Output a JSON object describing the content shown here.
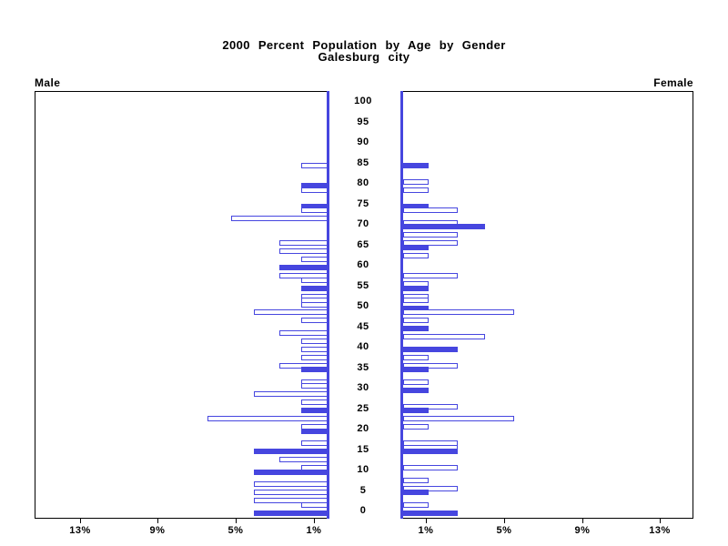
{
  "title": {
    "line1": "2000 Percent Population by Age by Gender",
    "line2": "Galesburg city"
  },
  "side_labels": {
    "left": "Male",
    "right": "Female"
  },
  "axis": {
    "age_labels": [
      "0",
      "5",
      "10",
      "15",
      "20",
      "25",
      "30",
      "35",
      "40",
      "45",
      "50",
      "55",
      "60",
      "65",
      "70",
      "75",
      "80",
      "85",
      "90",
      "95",
      "100"
    ],
    "male_pct_labels": [
      "13%",
      "9%",
      "5%",
      "1%"
    ],
    "female_pct_labels": [
      "1%",
      "5%",
      "9%",
      "13%"
    ]
  },
  "colors": {
    "bar_blue": "#4646df",
    "frame": "#000000",
    "text": "#000000",
    "background": "#ffffff"
  },
  "chart_data": {
    "type": "bar",
    "variant": "population-pyramid",
    "title": "2000 Percent Population by Age by Gender",
    "subtitle": "Galesburg city",
    "unit": "percent of population",
    "age_axis": {
      "min": 0,
      "max": 100,
      "tick_step": 5
    },
    "pct_axis": {
      "min": 0,
      "max": 15,
      "ticks": [
        1,
        5,
        9,
        13
      ]
    },
    "bar_style_note": "solid = filled blue bar, outline = white bar with blue border",
    "series": [
      {
        "name": "Male",
        "direction": "left",
        "bars": [
          {
            "age": 85,
            "pct": 1.4,
            "fill": "outline"
          },
          {
            "age": 80,
            "pct": 1.4,
            "fill": "solid"
          },
          {
            "age": 79,
            "pct": 1.4,
            "fill": "outline"
          },
          {
            "age": 75,
            "pct": 1.4,
            "fill": "solid"
          },
          {
            "age": 74,
            "pct": 1.4,
            "fill": "outline"
          },
          {
            "age": 72,
            "pct": 5.0,
            "fill": "outline"
          },
          {
            "age": 66,
            "pct": 2.5,
            "fill": "outline"
          },
          {
            "age": 64,
            "pct": 2.5,
            "fill": "outline"
          },
          {
            "age": 62,
            "pct": 1.4,
            "fill": "outline"
          },
          {
            "age": 60,
            "pct": 2.5,
            "fill": "solid"
          },
          {
            "age": 58,
            "pct": 2.5,
            "fill": "outline"
          },
          {
            "age": 57,
            "pct": 1.4,
            "fill": "outline"
          },
          {
            "age": 55,
            "pct": 1.4,
            "fill": "solid"
          },
          {
            "age": 53,
            "pct": 1.4,
            "fill": "outline"
          },
          {
            "age": 52,
            "pct": 1.4,
            "fill": "outline"
          },
          {
            "age": 51,
            "pct": 1.4,
            "fill": "outline"
          },
          {
            "age": 49,
            "pct": 3.8,
            "fill": "outline"
          },
          {
            "age": 47,
            "pct": 1.4,
            "fill": "outline"
          },
          {
            "age": 44,
            "pct": 2.5,
            "fill": "outline"
          },
          {
            "age": 42,
            "pct": 1.4,
            "fill": "outline"
          },
          {
            "age": 40,
            "pct": 1.4,
            "fill": "outline"
          },
          {
            "age": 38,
            "pct": 1.4,
            "fill": "outline"
          },
          {
            "age": 36,
            "pct": 2.5,
            "fill": "outline"
          },
          {
            "age": 35,
            "pct": 1.4,
            "fill": "solid"
          },
          {
            "age": 32,
            "pct": 1.4,
            "fill": "outline"
          },
          {
            "age": 31,
            "pct": 1.4,
            "fill": "outline"
          },
          {
            "age": 29,
            "pct": 3.8,
            "fill": "outline"
          },
          {
            "age": 27,
            "pct": 1.4,
            "fill": "outline"
          },
          {
            "age": 25,
            "pct": 1.4,
            "fill": "solid"
          },
          {
            "age": 23,
            "pct": 6.2,
            "fill": "outline"
          },
          {
            "age": 21,
            "pct": 1.4,
            "fill": "outline"
          },
          {
            "age": 20,
            "pct": 1.4,
            "fill": "solid"
          },
          {
            "age": 17,
            "pct": 1.4,
            "fill": "outline"
          },
          {
            "age": 15,
            "pct": 3.8,
            "fill": "solid"
          },
          {
            "age": 13,
            "pct": 2.5,
            "fill": "outline"
          },
          {
            "age": 11,
            "pct": 1.4,
            "fill": "outline"
          },
          {
            "age": 10,
            "pct": 3.8,
            "fill": "solid"
          },
          {
            "age": 7,
            "pct": 3.8,
            "fill": "outline"
          },
          {
            "age": 5,
            "pct": 3.8,
            "fill": "outline"
          },
          {
            "age": 3,
            "pct": 3.8,
            "fill": "outline"
          },
          {
            "age": 2,
            "pct": 1.4,
            "fill": "outline"
          },
          {
            "age": 0,
            "pct": 3.8,
            "fill": "solid"
          }
        ]
      },
      {
        "name": "Female",
        "direction": "right",
        "bars": [
          {
            "age": 85,
            "pct": 1.3,
            "fill": "solid"
          },
          {
            "age": 81,
            "pct": 1.3,
            "fill": "outline"
          },
          {
            "age": 79,
            "pct": 1.3,
            "fill": "outline"
          },
          {
            "age": 75,
            "pct": 1.3,
            "fill": "solid"
          },
          {
            "age": 74,
            "pct": 2.8,
            "fill": "outline"
          },
          {
            "age": 71,
            "pct": 2.8,
            "fill": "outline"
          },
          {
            "age": 70,
            "pct": 4.2,
            "fill": "solid"
          },
          {
            "age": 68,
            "pct": 2.8,
            "fill": "outline"
          },
          {
            "age": 66,
            "pct": 2.8,
            "fill": "outline"
          },
          {
            "age": 65,
            "pct": 1.3,
            "fill": "solid"
          },
          {
            "age": 63,
            "pct": 1.3,
            "fill": "outline"
          },
          {
            "age": 58,
            "pct": 2.8,
            "fill": "outline"
          },
          {
            "age": 56,
            "pct": 1.3,
            "fill": "outline"
          },
          {
            "age": 55,
            "pct": 1.3,
            "fill": "solid"
          },
          {
            "age": 53,
            "pct": 1.3,
            "fill": "outline"
          },
          {
            "age": 52,
            "pct": 1.3,
            "fill": "outline"
          },
          {
            "age": 50,
            "pct": 1.3,
            "fill": "solid"
          },
          {
            "age": 49,
            "pct": 5.7,
            "fill": "outline"
          },
          {
            "age": 47,
            "pct": 1.3,
            "fill": "outline"
          },
          {
            "age": 45,
            "pct": 1.3,
            "fill": "solid"
          },
          {
            "age": 43,
            "pct": 4.2,
            "fill": "outline"
          },
          {
            "age": 40,
            "pct": 2.8,
            "fill": "solid"
          },
          {
            "age": 38,
            "pct": 1.3,
            "fill": "outline"
          },
          {
            "age": 36,
            "pct": 2.8,
            "fill": "outline"
          },
          {
            "age": 35,
            "pct": 1.3,
            "fill": "solid"
          },
          {
            "age": 32,
            "pct": 1.3,
            "fill": "outline"
          },
          {
            "age": 30,
            "pct": 1.3,
            "fill": "solid"
          },
          {
            "age": 26,
            "pct": 2.8,
            "fill": "outline"
          },
          {
            "age": 25,
            "pct": 1.3,
            "fill": "solid"
          },
          {
            "age": 23,
            "pct": 5.7,
            "fill": "outline"
          },
          {
            "age": 21,
            "pct": 1.3,
            "fill": "outline"
          },
          {
            "age": 17,
            "pct": 2.8,
            "fill": "outline"
          },
          {
            "age": 16,
            "pct": 2.8,
            "fill": "outline"
          },
          {
            "age": 15,
            "pct": 2.8,
            "fill": "solid"
          },
          {
            "age": 11,
            "pct": 2.8,
            "fill": "outline"
          },
          {
            "age": 8,
            "pct": 1.3,
            "fill": "outline"
          },
          {
            "age": 6,
            "pct": 2.8,
            "fill": "outline"
          },
          {
            "age": 5,
            "pct": 1.3,
            "fill": "solid"
          },
          {
            "age": 2,
            "pct": 1.3,
            "fill": "outline"
          },
          {
            "age": 0,
            "pct": 2.8,
            "fill": "solid"
          }
        ]
      }
    ]
  }
}
